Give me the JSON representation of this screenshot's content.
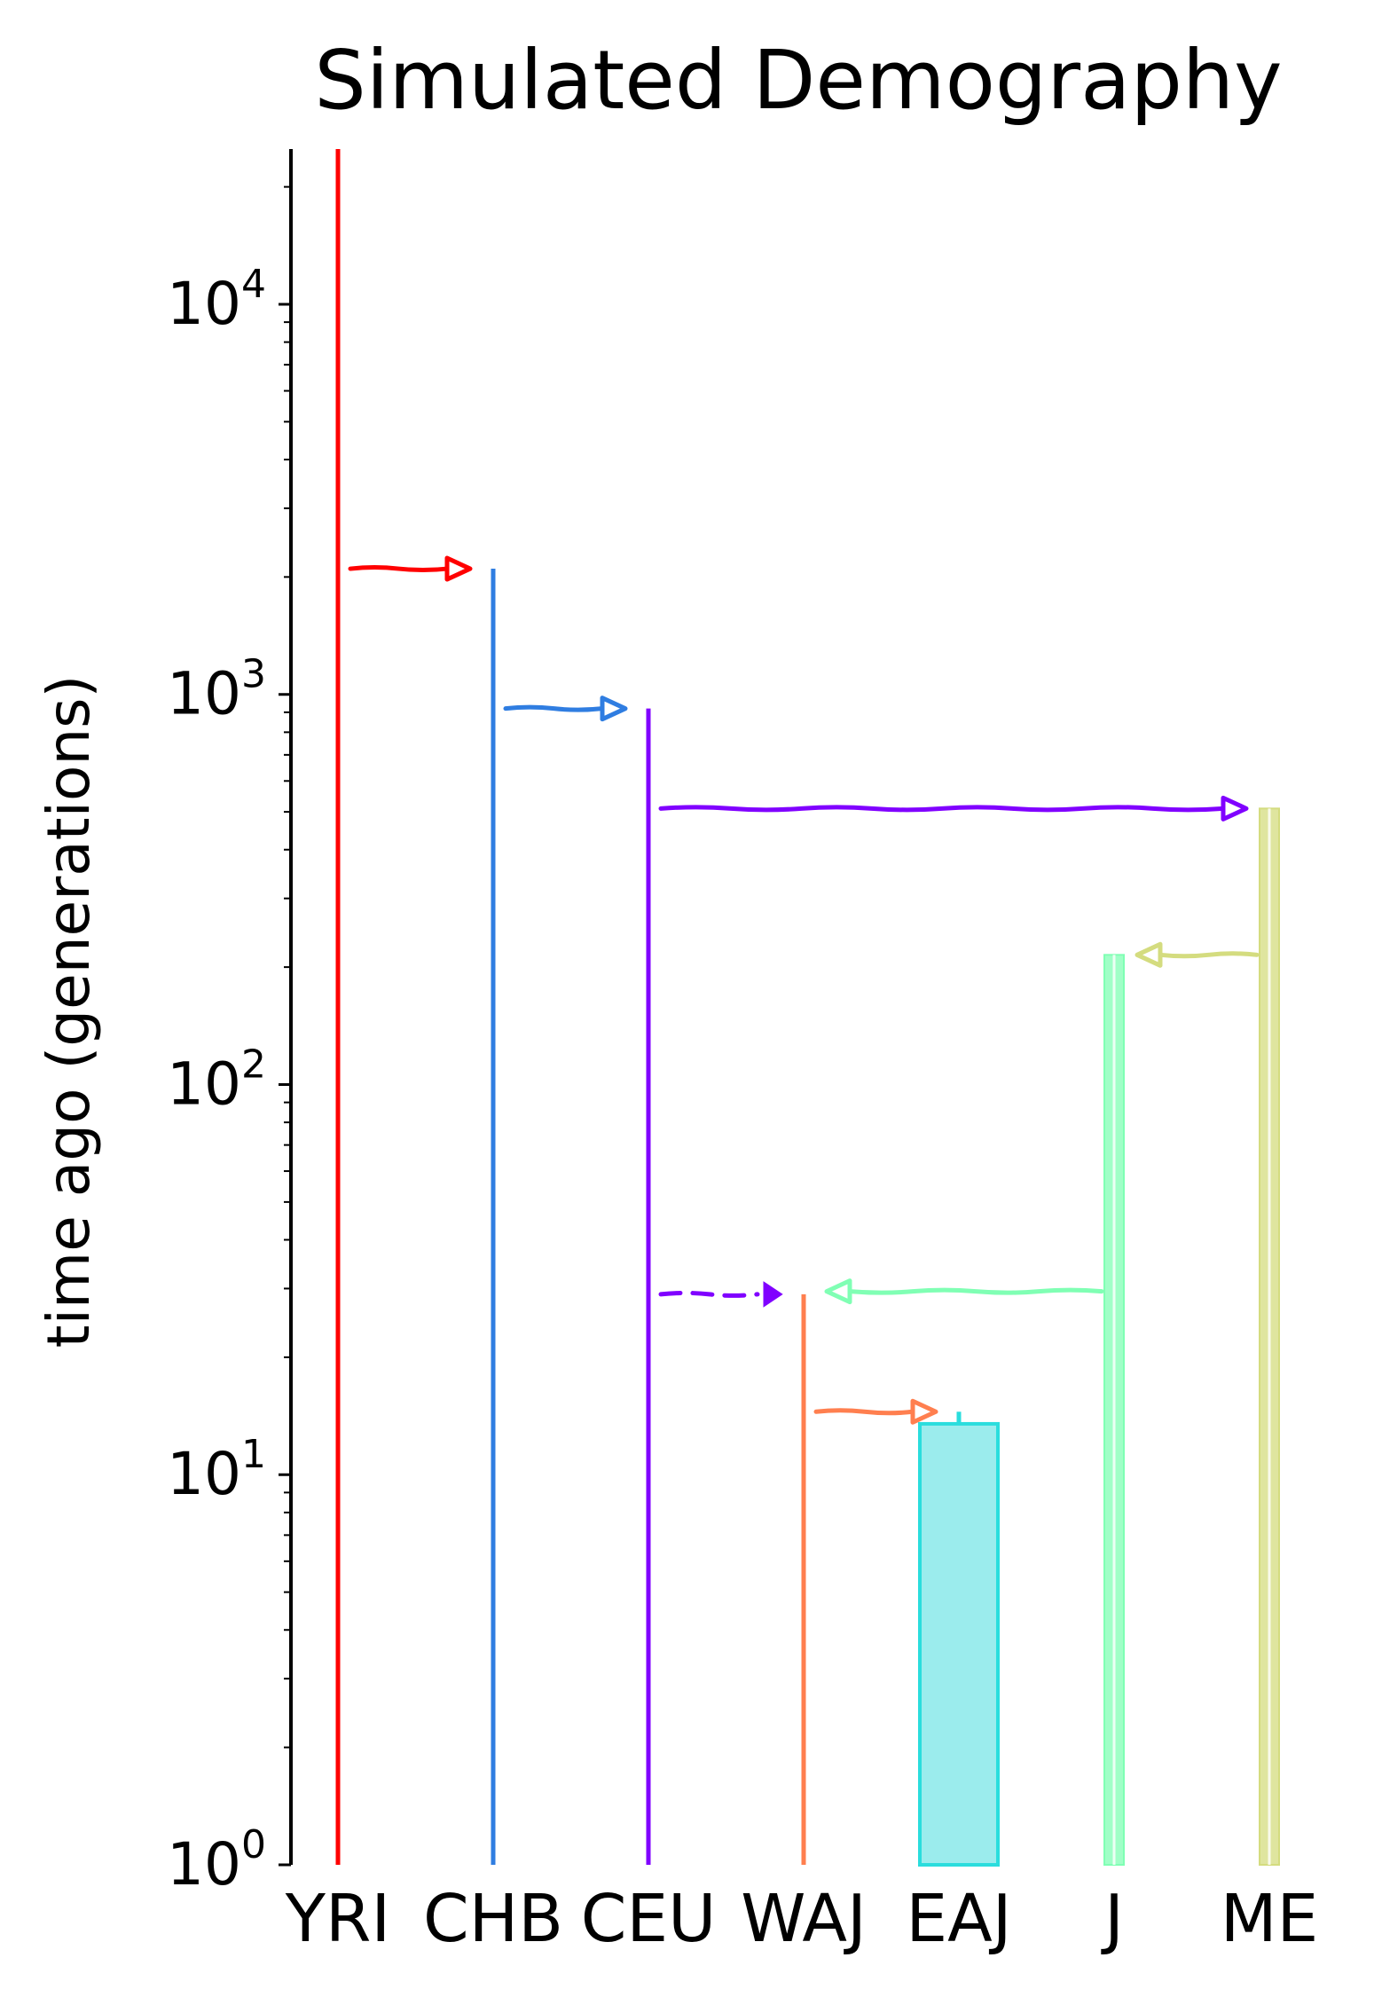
{
  "chart_data": {
    "type": "demography",
    "title": "Simulated Demography",
    "xlabel": "",
    "ylabel": "time ago (generations)",
    "yscale": "log",
    "ylim": [
      1,
      25000
    ],
    "y_ticks": [
      {
        "value": 1,
        "base": "10",
        "exp": "0"
      },
      {
        "value": 10,
        "base": "10",
        "exp": "1"
      },
      {
        "value": 100,
        "base": "10",
        "exp": "2"
      },
      {
        "value": 1000,
        "base": "10",
        "exp": "3"
      },
      {
        "value": 10000,
        "base": "10",
        "exp": "4"
      }
    ],
    "populations": [
      {
        "name": "YRI",
        "color": "#ff0000",
        "start": 25000,
        "style": "line"
      },
      {
        "name": "CHB",
        "color": "#2f7de1",
        "start": 2100,
        "style": "line"
      },
      {
        "name": "CEU",
        "color": "#8000ff",
        "start": 920,
        "style": "line"
      },
      {
        "name": "WAJ",
        "color": "#ff7f4f",
        "start": 29,
        "style": "line"
      },
      {
        "name": "EAJ",
        "color": "#2adddd",
        "start": 14.5,
        "growth_start": 13.5,
        "style": "growth"
      },
      {
        "name": "J",
        "color": "#80ffb4",
        "start": 215,
        "style": "thick"
      },
      {
        "name": "ME",
        "color": "#d4dc7f",
        "start": 510,
        "style": "thick"
      }
    ],
    "migrations": [
      {
        "from": "YRI",
        "to": "CHB",
        "time": 2100,
        "color": "#ff0000",
        "dashed": false
      },
      {
        "from": "CHB",
        "to": "CEU",
        "time": 920,
        "color": "#2f7de1",
        "dashed": false
      },
      {
        "from": "CEU",
        "to": "ME",
        "time": 510,
        "color": "#8000ff",
        "dashed": false
      },
      {
        "from": "ME",
        "to": "J",
        "time": 215,
        "color": "#d4dc7f",
        "dashed": false
      },
      {
        "from": "CEU",
        "to": "WAJ",
        "time": 29,
        "color": "#8000ff",
        "dashed": true
      },
      {
        "from": "J",
        "to": "WAJ",
        "time": 29.5,
        "color": "#80ffb4",
        "dashed": false
      },
      {
        "from": "WAJ",
        "to": "EAJ",
        "time": 14.5,
        "color": "#ff7f4f",
        "dashed": false
      }
    ]
  }
}
